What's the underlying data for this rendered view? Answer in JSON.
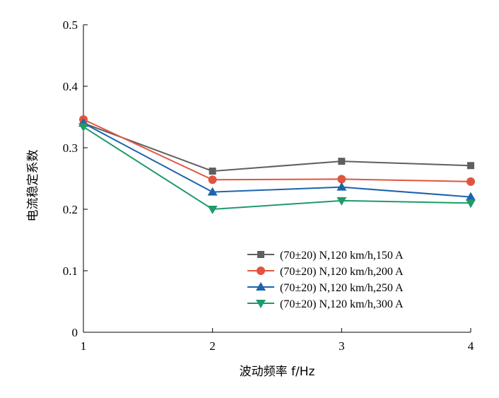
{
  "chart_data": {
    "type": "line",
    "title": "",
    "xlabel": "波动频率 f/Hz",
    "ylabel": "电流稳定系数",
    "x": [
      1,
      2,
      3,
      4
    ],
    "xlim": [
      1,
      4
    ],
    "ylim": [
      0,
      0.5
    ],
    "xticks": [
      "1",
      "2",
      "3",
      "4"
    ],
    "yticks": [
      "0",
      "0.1",
      "0.2",
      "0.3",
      "0.4",
      "0.5"
    ],
    "grid": false,
    "legend_position": "bottom-right",
    "series": [
      {
        "name": "(70±20) N,120 km/h,150 A",
        "values": [
          0.34,
          0.262,
          0.278,
          0.271
        ],
        "color": "#5f5f5f",
        "marker": "square"
      },
      {
        "name": "(70±20) N,120 km/h,200 A",
        "values": [
          0.346,
          0.248,
          0.249,
          0.245
        ],
        "color": "#e0553f",
        "marker": "circle"
      },
      {
        "name": "(70±20) N,120 km/h,250 A",
        "values": [
          0.34,
          0.228,
          0.236,
          0.22
        ],
        "color": "#1c64ad",
        "marker": "triangle-up"
      },
      {
        "name": "(70±20) N,120 km/h,300 A",
        "values": [
          0.334,
          0.2,
          0.214,
          0.21
        ],
        "color": "#1f9a6a",
        "marker": "triangle-down"
      }
    ]
  }
}
